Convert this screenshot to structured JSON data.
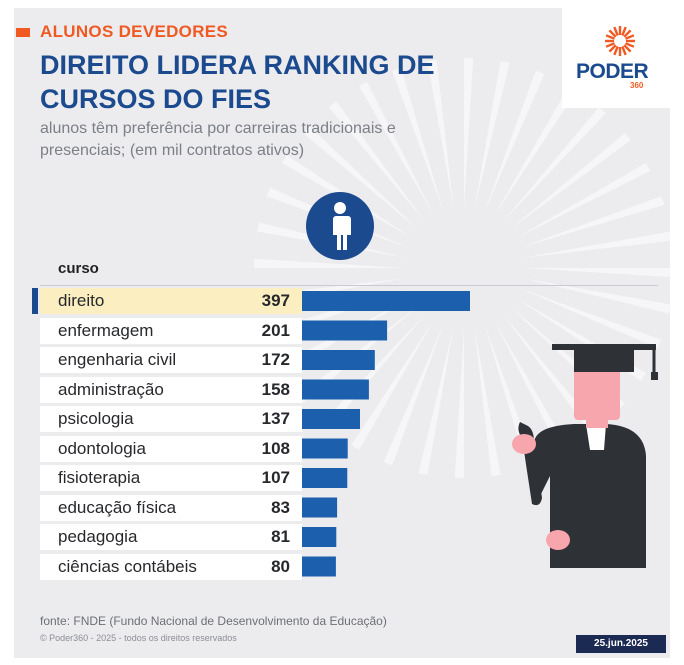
{
  "kicker": "ALUNOS DEVEDORES",
  "title": "DIREITO LIDERA RANKING DE CURSOS DO FIES",
  "subtitle": "alunos têm preferência por carreiras tradicionais e presenciais; (em mil contratos ativos)",
  "logo": {
    "word": "PODER",
    "number": "360"
  },
  "column_header": "curso",
  "source": "fonte: FNDE (Fundo Nacional de Desenvolvimento da Educação)",
  "copyright": "© Poder360 - 2025 - todos os direitos reservados",
  "date": "25.jun.2025",
  "colors": {
    "accent": "#f05a22",
    "brand": "#1b4a8f",
    "bar": "#1c5fad",
    "highlight": "#fbeec1"
  },
  "chart_data": {
    "type": "bar",
    "orientation": "horizontal",
    "title": "DIREITO LIDERA RANKING DE CURSOS DO FIES",
    "unit": "mil contratos ativos",
    "categories": [
      "direito",
      "enfermagem",
      "engenharia civil",
      "administração",
      "psicologia",
      "odontologia",
      "fisioterapia",
      "educação física",
      "pedagogia",
      "ciências contábeis"
    ],
    "values": [
      397,
      201,
      172,
      158,
      137,
      108,
      107,
      83,
      81,
      80
    ],
    "highlight": "direito",
    "xlim": [
      0,
      397
    ]
  }
}
